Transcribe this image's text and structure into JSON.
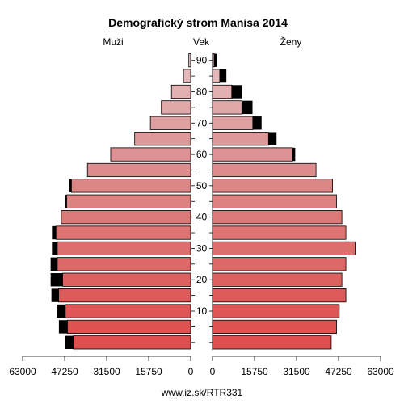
{
  "chart_data": {
    "type": "bar",
    "title": "Demografický strom Manisa 2014",
    "left_label": "Muži",
    "center_label": "Vek",
    "right_label": "Ženy",
    "footer": "www.iz.sk/RTR331",
    "age_groups": [
      "0-4",
      "5-9",
      "10-14",
      "15-19",
      "20-24",
      "25-29",
      "30-34",
      "35-39",
      "40-44",
      "45-49",
      "50-54",
      "55-59",
      "60-64",
      "65-69",
      "70-74",
      "75-79",
      "80-84",
      "85-89",
      "90+"
    ],
    "age_ticks": [
      "10",
      "20",
      "30",
      "40",
      "50",
      "60",
      "70",
      "80",
      "90"
    ],
    "x_ticks": [
      "63000",
      "47250",
      "31500",
      "15750",
      "0",
      "15750",
      "31500",
      "47250",
      "63000"
    ],
    "xlim": [
      0,
      63000
    ],
    "men": {
      "base": [
        44000,
        46200,
        47000,
        49500,
        48000,
        50000,
        50000,
        50500,
        48500,
        46500,
        44700,
        38700,
        30000,
        21000,
        15100,
        11000,
        7200,
        2700,
        700
      ],
      "excess": [
        3000,
        3200,
        3200,
        2700,
        4500,
        2500,
        2000,
        1500,
        0,
        500,
        800,
        0,
        0,
        0,
        0,
        0,
        0,
        0,
        0
      ]
    },
    "women": {
      "base": [
        44500,
        46500,
        47500,
        50000,
        48500,
        50000,
        53500,
        50000,
        48500,
        46500,
        45000,
        38800,
        30000,
        21000,
        15100,
        11000,
        7200,
        2700,
        600
      ],
      "excess": [
        0,
        0,
        0,
        0,
        0,
        0,
        0,
        0,
        0,
        0,
        0,
        0,
        1000,
        3000,
        3300,
        4000,
        4000,
        2500,
        1200
      ]
    },
    "colors": {
      "row_shades": [
        "#df4f4f",
        "#df5252",
        "#df5656",
        "#de5b5b",
        "#de6161",
        "#de6767",
        "#de6d6d",
        "#dd7373",
        "#dc7a7a",
        "#dc8080",
        "#dc8686",
        "#dc8c8c",
        "#dc9292",
        "#dd9999",
        "#dea0a0",
        "#e0a8a8",
        "#e2b0b0",
        "#e4b8b8",
        "#e6c0c0"
      ],
      "excess": "#000000",
      "stroke": "#000000"
    }
  }
}
